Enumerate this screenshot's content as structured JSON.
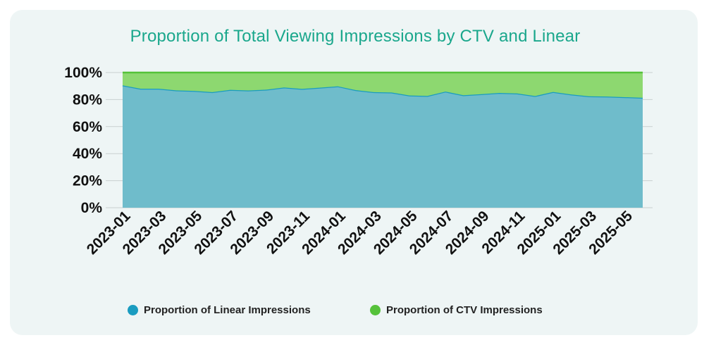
{
  "chart_data": {
    "type": "area",
    "stacked": true,
    "title": "Proportion of Total Viewing Impressions by CTV and Linear",
    "xlabel": "",
    "ylabel": "",
    "ylim": [
      0,
      100
    ],
    "yticks": [
      "0%",
      "20%",
      "40%",
      "60%",
      "80%",
      "100%"
    ],
    "x": [
      "2023-01",
      "2023-02",
      "2023-03",
      "2023-04",
      "2023-05",
      "2023-06",
      "2023-07",
      "2023-08",
      "2023-09",
      "2023-10",
      "2023-11",
      "2023-12",
      "2024-01",
      "2024-02",
      "2024-03",
      "2024-04",
      "2024-05",
      "2024-06",
      "2024-07",
      "2024-08",
      "2024-09",
      "2024-10",
      "2024-11",
      "2024-12",
      "2025-01",
      "2025-02",
      "2025-03",
      "2025-04",
      "2025-05",
      "2025-06"
    ],
    "xticks_shown": [
      "2023-01",
      "2023-03",
      "2023-05",
      "2023-07",
      "2023-09",
      "2023-11",
      "2024-01",
      "2024-03",
      "2024-05",
      "2024-07",
      "2024-09",
      "2024-11",
      "2025-01",
      "2025-03",
      "2025-05"
    ],
    "grid": true,
    "legend_position": "bottom",
    "series": [
      {
        "name": "Proportion of Linear Impressions",
        "color": "#6fbccb",
        "line_color": "#1a9cc0",
        "values": [
          90.5,
          88.0,
          88.0,
          86.8,
          86.4,
          85.5,
          87.2,
          86.7,
          87.3,
          88.9,
          87.9,
          88.8,
          89.8,
          87.0,
          85.5,
          85.2,
          83.0,
          82.7,
          85.9,
          83.2,
          84.0,
          84.9,
          84.5,
          82.6,
          85.6,
          83.8,
          82.4,
          82.2,
          81.8,
          81.3
        ]
      },
      {
        "name": "Proportion of CTV Impressions",
        "color": "#8dd870",
        "line_color": "#55c23a",
        "values": [
          9.5,
          12.0,
          12.0,
          13.2,
          13.6,
          14.5,
          12.8,
          13.3,
          12.7,
          11.1,
          12.1,
          11.2,
          10.2,
          13.0,
          14.5,
          14.8,
          17.0,
          17.3,
          14.1,
          16.8,
          16.0,
          15.1,
          15.5,
          17.4,
          14.4,
          16.2,
          17.6,
          17.8,
          18.2,
          18.7
        ]
      }
    ]
  }
}
